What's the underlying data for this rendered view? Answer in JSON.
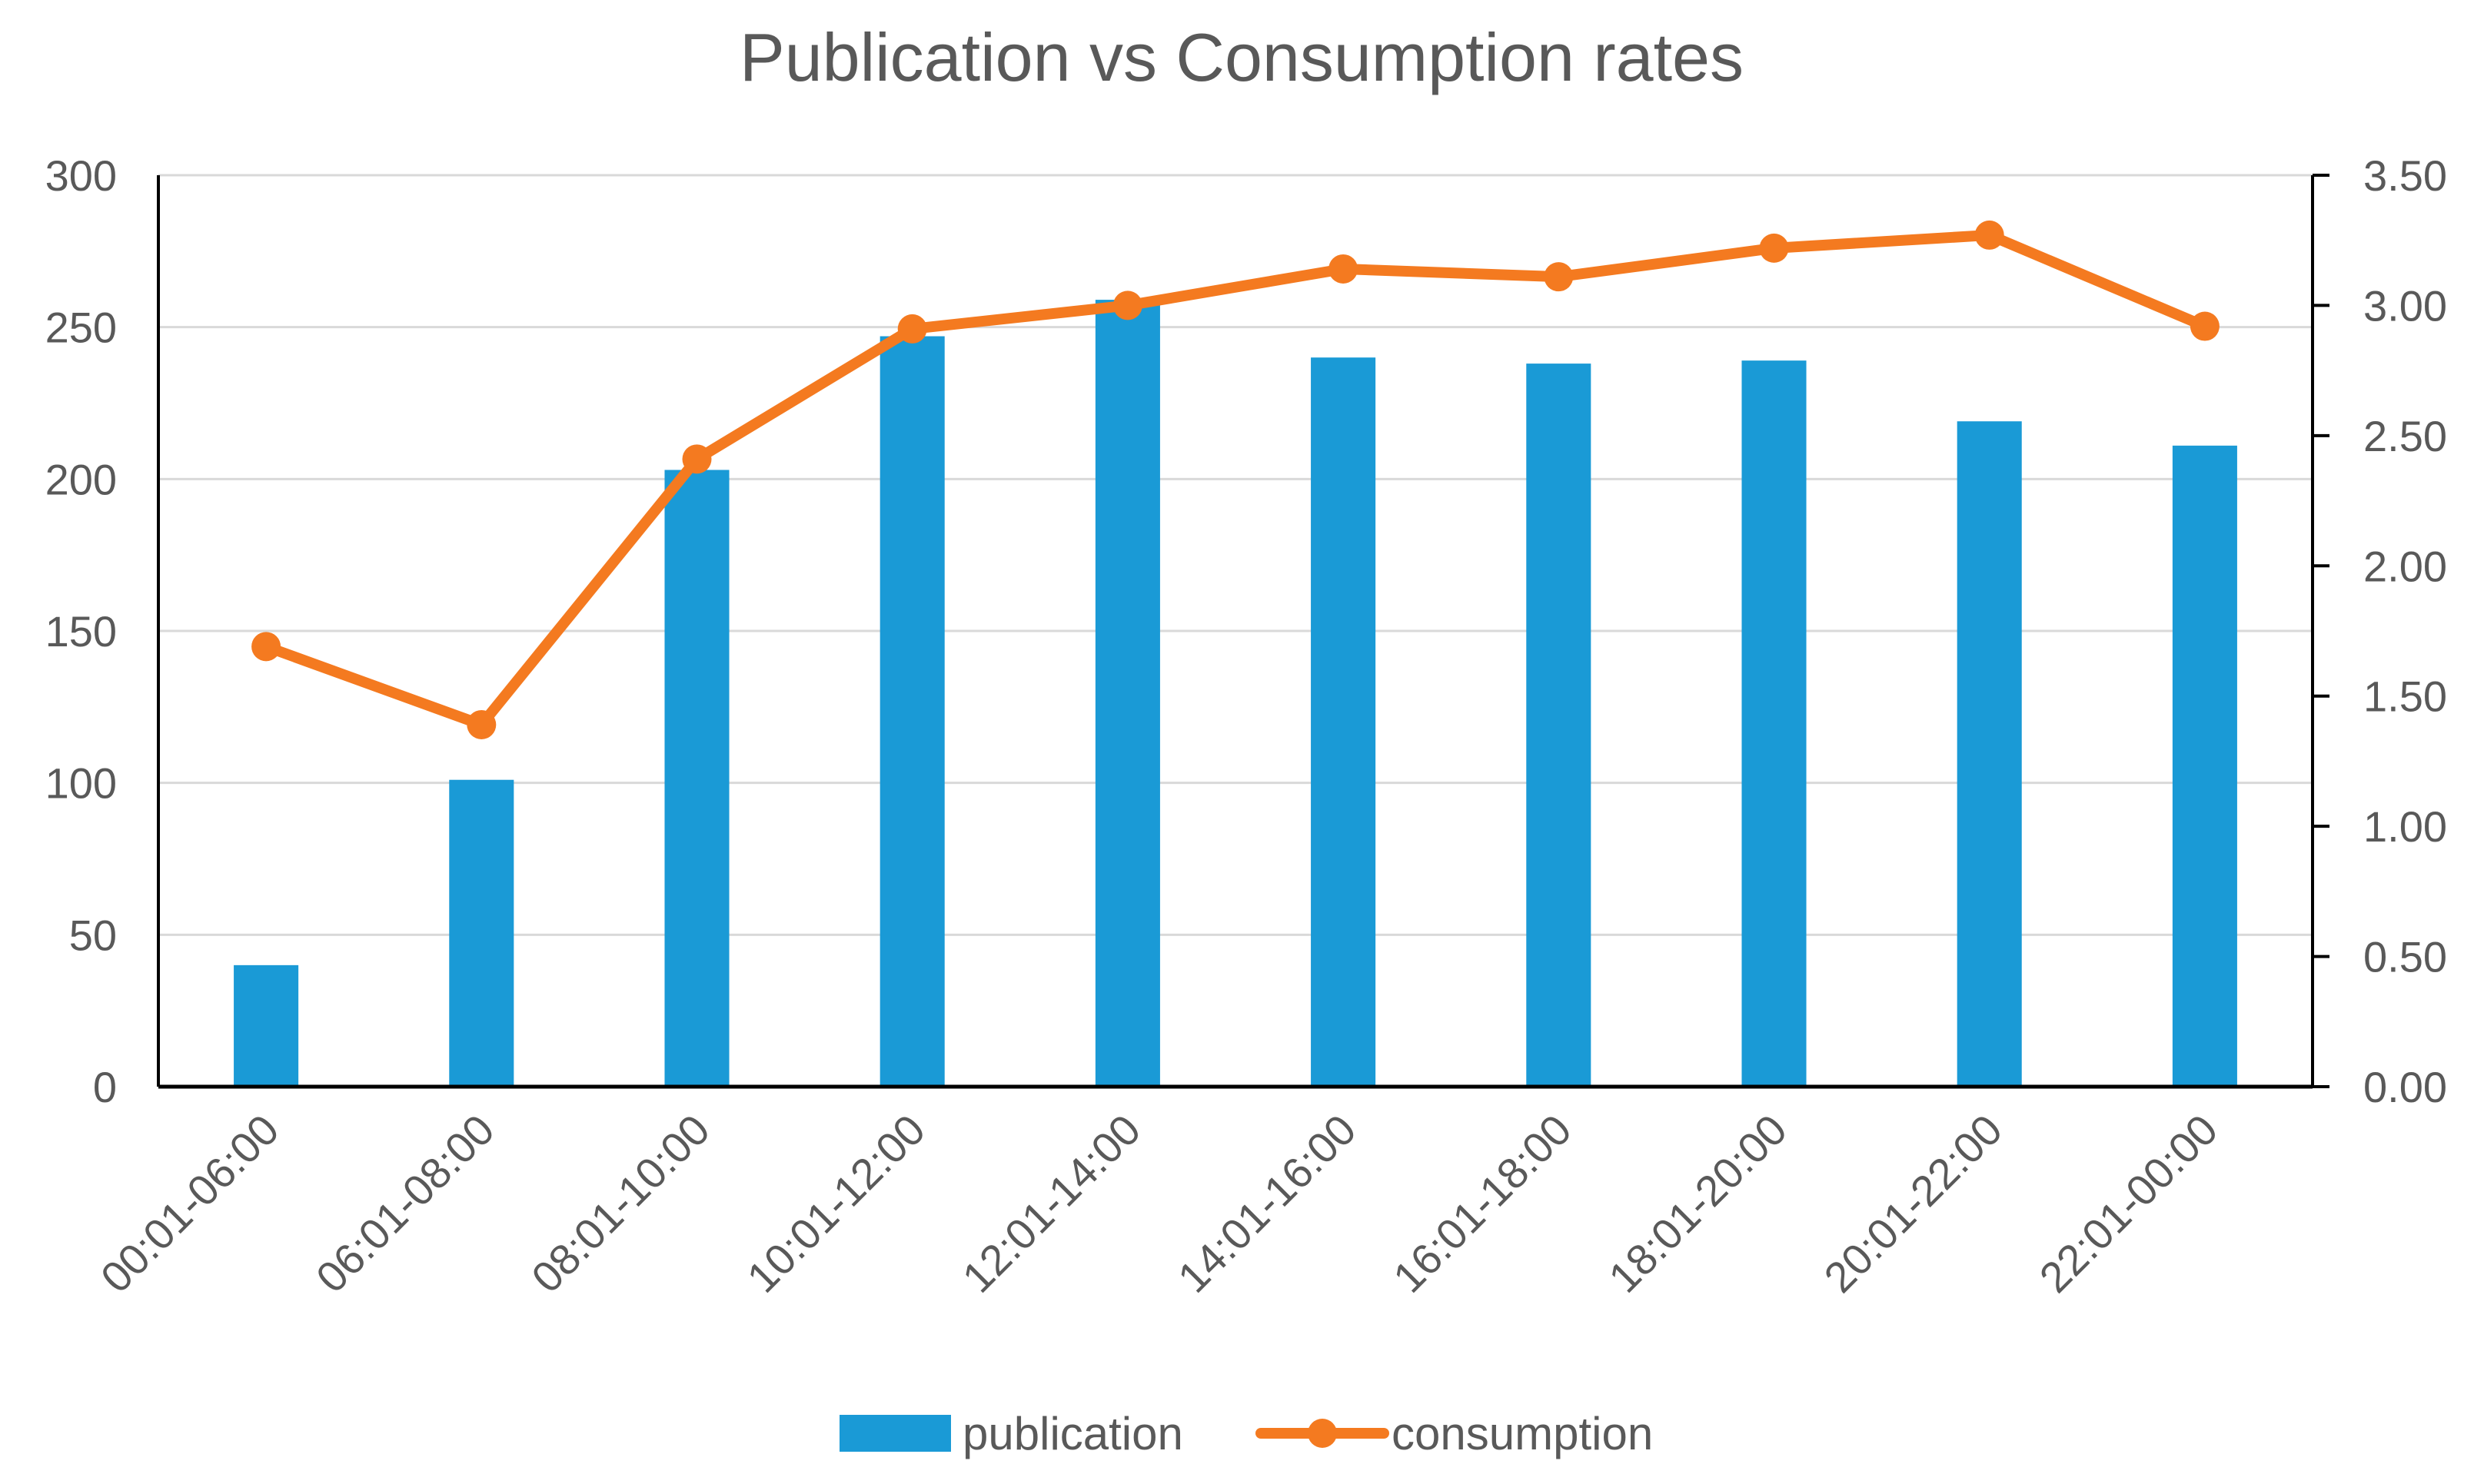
{
  "chart_data": {
    "type": "bar+line",
    "title": "Publication vs Consumption rates",
    "categories": [
      "00:01-06:00",
      "06:01-08:00",
      "08:01-10:00",
      "10:01-12:00",
      "12:01-14:00",
      "14:01-16:00",
      "16:01-18:00",
      "18:01-20:00",
      "20:01-22:00",
      "22:01-00:00"
    ],
    "series": [
      {
        "name": "publication",
        "type": "bar",
        "axis": "left",
        "color": "#1a9ad6",
        "values": [
          40,
          101,
          203,
          247,
          259,
          240,
          238,
          239,
          219,
          211
        ]
      },
      {
        "name": "consumption",
        "type": "line",
        "axis": "right",
        "color": "#f47a20",
        "values": [
          1.69,
          1.39,
          2.41,
          2.91,
          3.0,
          3.14,
          3.11,
          3.22,
          3.27,
          2.92
        ]
      }
    ],
    "y_left": {
      "ylim": [
        0,
        300
      ],
      "ticks": [
        0,
        50,
        100,
        150,
        200,
        250,
        300
      ],
      "tick_labels": [
        "0",
        "50",
        "100",
        "150",
        "200",
        "250",
        "300"
      ]
    },
    "y_right": {
      "ylim": [
        0,
        3.5
      ],
      "ticks": [
        0,
        0.5,
        1.0,
        1.5,
        2.0,
        2.5,
        3.0,
        3.5
      ],
      "tick_labels": [
        "0.00",
        "0.50",
        "1.00",
        "1.50",
        "2.00",
        "2.50",
        "3.00",
        "3.50"
      ]
    },
    "grid": true,
    "legend": {
      "position": "bottom",
      "items": [
        "publication",
        "consumption"
      ]
    },
    "colors": {
      "grid": "#d9d9d9",
      "axis": "#000000",
      "text": "#595959"
    }
  }
}
